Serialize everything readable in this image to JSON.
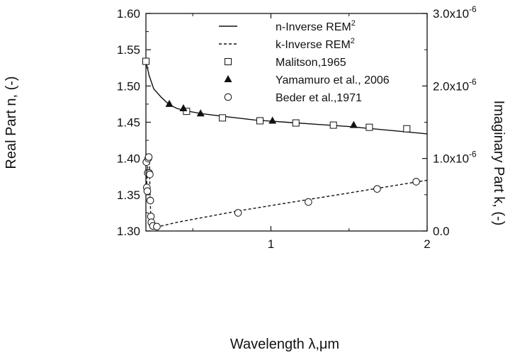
{
  "chart_data": {
    "type": "line",
    "xlabel": "Wavelength λ,μm",
    "ylabel_left": "Real Part n, (-)",
    "ylabel_right": "Imaginary Part k, (-)",
    "xlim": [
      0.2,
      2.0
    ],
    "ylim_left": [
      1.3,
      1.6
    ],
    "ylim_right": [
      0,
      3e-06
    ],
    "x_ticks": [
      "1",
      "2"
    ],
    "y_left_ticks": [
      "1.30",
      "1.35",
      "1.40",
      "1.45",
      "1.50",
      "1.55",
      "1.60"
    ],
    "y_right_ticks": [
      "0.0",
      "1.0x10",
      "2.0x10",
      "3.0x10"
    ],
    "y_right_tick_exp": "-6",
    "legend": {
      "position": "top-right",
      "entries": [
        {
          "label": "n-Inverse REM",
          "sup": "2",
          "marker": "solid-line"
        },
        {
          "label": "k-Inverse REM",
          "sup": "2",
          "marker": "dashed-line"
        },
        {
          "label": "Malitson,1965",
          "marker": "open-square"
        },
        {
          "label": "Yamamuro  et al., 2006",
          "marker": "filled-triangle"
        },
        {
          "label": "Beder et al.,1971",
          "marker": "open-circle"
        }
      ]
    },
    "series": [
      {
        "name": "n-Inverse REM2",
        "axis": "left",
        "style": "solid",
        "points": [
          [
            0.2,
            1.534
          ],
          [
            0.22,
            1.515
          ],
          [
            0.25,
            1.496
          ],
          [
            0.3,
            1.484
          ],
          [
            0.35,
            1.474
          ],
          [
            0.4,
            1.469
          ],
          [
            0.45,
            1.466
          ],
          [
            0.55,
            1.462
          ],
          [
            0.7,
            1.458
          ],
          [
            0.9,
            1.453
          ],
          [
            1.1,
            1.45
          ],
          [
            1.3,
            1.447
          ],
          [
            1.5,
            1.444
          ],
          [
            1.7,
            1.44
          ],
          [
            1.9,
            1.436
          ],
          [
            2.0,
            1.434
          ]
        ]
      },
      {
        "name": "k-Inverse REM2",
        "axis": "right",
        "style": "dashed",
        "points": [
          [
            0.205,
            6.5e-07
          ],
          [
            0.213,
            1e-06
          ],
          [
            0.222,
            1e-06
          ],
          [
            0.227,
            4.2e-07
          ],
          [
            0.232,
            1.5e-07
          ],
          [
            0.238,
            6e-08
          ],
          [
            0.26,
            5e-08
          ],
          [
            0.4,
            1.2e-07
          ],
          [
            0.8,
            2.8e-07
          ],
          [
            1.2,
            4.2e-07
          ],
          [
            1.6,
            5.6e-07
          ],
          [
            2.0,
            7e-07
          ]
        ]
      },
      {
        "name": "Malitson,1965",
        "axis": "left",
        "marker": "open-square",
        "points": [
          [
            0.2,
            1.534
          ],
          [
            0.46,
            1.465
          ],
          [
            0.69,
            1.456
          ],
          [
            0.93,
            1.452
          ],
          [
            1.16,
            1.449
          ],
          [
            1.4,
            1.446
          ],
          [
            1.63,
            1.443
          ],
          [
            1.87,
            1.441
          ]
        ]
      },
      {
        "name": "Yamamuro et al., 2006",
        "axis": "left",
        "marker": "filled-triangle",
        "points": [
          [
            0.35,
            1.475
          ],
          [
            0.44,
            1.469
          ],
          [
            0.55,
            1.462
          ],
          [
            1.01,
            1.452
          ],
          [
            1.53,
            1.446
          ]
        ]
      },
      {
        "name": "Beder et al.,1971",
        "axis": "right",
        "marker": "open-circle",
        "points": [
          [
            0.203,
            9.5e-07
          ],
          [
            0.206,
            6e-07
          ],
          [
            0.209,
            5.5e-07
          ],
          [
            0.212,
            8e-07
          ],
          [
            0.215,
            1e-06
          ],
          [
            0.218,
            1.02e-06
          ],
          [
            0.221,
            8e-07
          ],
          [
            0.225,
            7.8e-07
          ],
          [
            0.228,
            4.2e-07
          ],
          [
            0.232,
            2e-07
          ],
          [
            0.235,
            1.2e-07
          ],
          [
            0.245,
            7e-08
          ],
          [
            0.27,
            6e-08
          ],
          [
            0.79,
            2.5e-07
          ],
          [
            1.24,
            4e-07
          ],
          [
            1.68,
            5.8e-07
          ],
          [
            1.93,
            6.8e-07
          ]
        ]
      }
    ]
  }
}
